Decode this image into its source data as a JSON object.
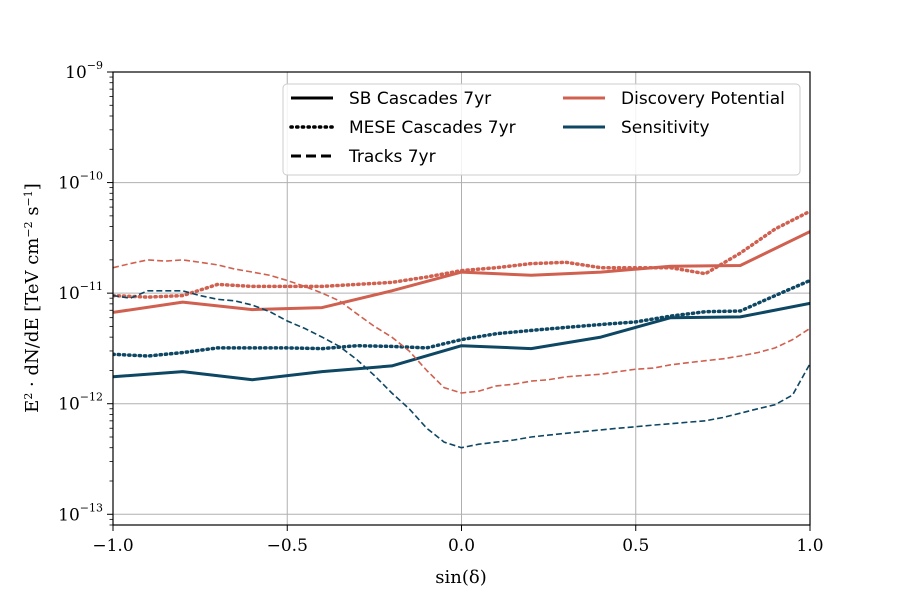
{
  "chart_data": {
    "type": "line",
    "xlabel": "sin(δ)",
    "ylabel_parts": [
      "E",
      "2",
      " · dN/dE  [TeV cm",
      "−2",
      " s",
      "−1",
      "]"
    ],
    "xlim": [
      -1.0,
      1.0
    ],
    "ylim": [
      8e-14,
      1e-09
    ],
    "yscale": "log",
    "grid": true,
    "x_ticks": [
      -1.0,
      -0.5,
      0.0,
      0.5,
      1.0
    ],
    "x_tick_labels": [
      "−1.0",
      "−0.5",
      "0.0",
      "0.5",
      "1.0"
    ],
    "y_ticks": [
      1e-13,
      1e-12,
      1e-11,
      1e-10,
      1e-09
    ],
    "y_tick_base": "10",
    "y_tick_exps": [
      "−13",
      "−12",
      "−11",
      "−10",
      "−9"
    ],
    "colors": {
      "discovery": "#d0604f",
      "sensitivity": "#0d4763"
    },
    "legend": {
      "position": "upper-right",
      "style_entries": [
        {
          "label": "SB Cascades 7yr",
          "style": "solid"
        },
        {
          "label": "MESE Cascades 7yr",
          "style": "dotted"
        },
        {
          "label": "Tracks 7yr",
          "style": "dashed"
        }
      ],
      "color_entries": [
        {
          "label": "Discovery Potential",
          "color": "#d0604f"
        },
        {
          "label": "Sensitivity",
          "color": "#0d4763"
        }
      ]
    },
    "series": [
      {
        "group": "Discovery Potential",
        "dataset": "SB Cascades 7yr",
        "style": "solid",
        "color": "#d0604f",
        "width": 3,
        "x": [
          -1.0,
          -0.8,
          -0.6,
          -0.4,
          -0.2,
          0.0,
          0.2,
          0.4,
          0.6,
          0.8,
          1.0
        ],
        "y": [
          6.7e-12,
          8.3e-12,
          7.1e-12,
          7.4e-12,
          1.05e-11,
          1.55e-11,
          1.45e-11,
          1.55e-11,
          1.75e-11,
          1.78e-11,
          3.6e-11
        ]
      },
      {
        "group": "Sensitivity",
        "dataset": "SB Cascades 7yr",
        "style": "solid",
        "color": "#0d4763",
        "width": 3,
        "x": [
          -1.0,
          -0.8,
          -0.6,
          -0.4,
          -0.2,
          0.0,
          0.2,
          0.4,
          0.6,
          0.8,
          1.0
        ],
        "y": [
          1.75e-12,
          1.95e-12,
          1.65e-12,
          1.95e-12,
          2.2e-12,
          3.35e-12,
          3.15e-12,
          4e-12,
          6e-12,
          6.1e-12,
          8.1e-12
        ]
      },
      {
        "group": "Discovery Potential",
        "dataset": "MESE Cascades 7yr",
        "style": "dotted",
        "color": "#d0604f",
        "width": 3.5,
        "x": [
          -1.0,
          -0.9,
          -0.8,
          -0.7,
          -0.6,
          -0.5,
          -0.4,
          -0.3,
          -0.2,
          -0.1,
          0.0,
          0.1,
          0.2,
          0.3,
          0.4,
          0.5,
          0.6,
          0.7,
          0.8,
          0.9,
          1.0
        ],
        "y": [
          9.5e-12,
          9.2e-12,
          9.5e-12,
          1.2e-11,
          1.15e-11,
          1.15e-11,
          1.15e-11,
          1.2e-11,
          1.25e-11,
          1.4e-11,
          1.6e-11,
          1.7e-11,
          1.85e-11,
          1.9e-11,
          1.7e-11,
          1.7e-11,
          1.7e-11,
          1.5e-11,
          2.3e-11,
          3.8e-11,
          5.5e-11
        ]
      },
      {
        "group": "Sensitivity",
        "dataset": "MESE Cascades 7yr",
        "style": "dotted",
        "color": "#0d4763",
        "width": 3.5,
        "x": [
          -1.0,
          -0.9,
          -0.8,
          -0.7,
          -0.6,
          -0.5,
          -0.4,
          -0.3,
          -0.2,
          -0.1,
          0.0,
          0.1,
          0.2,
          0.3,
          0.4,
          0.5,
          0.6,
          0.7,
          0.8,
          0.9,
          1.0
        ],
        "y": [
          2.8e-12,
          2.7e-12,
          2.9e-12,
          3.2e-12,
          3.2e-12,
          3.2e-12,
          3.15e-12,
          3.35e-12,
          3.3e-12,
          3.2e-12,
          3.8e-12,
          4.3e-12,
          4.6e-12,
          4.9e-12,
          5.2e-12,
          5.5e-12,
          6.2e-12,
          6.8e-12,
          6.9e-12,
          9.5e-12,
          1.3e-11
        ]
      },
      {
        "group": "Discovery Potential",
        "dataset": "Tracks 7yr",
        "style": "dashed",
        "color": "#d0604f",
        "width": 1.6,
        "x": [
          -1.0,
          -0.95,
          -0.9,
          -0.85,
          -0.8,
          -0.75,
          -0.7,
          -0.65,
          -0.6,
          -0.55,
          -0.5,
          -0.45,
          -0.4,
          -0.35,
          -0.3,
          -0.25,
          -0.2,
          -0.15,
          -0.1,
          -0.05,
          0.0,
          0.05,
          0.1,
          0.15,
          0.2,
          0.25,
          0.3,
          0.35,
          0.4,
          0.45,
          0.5,
          0.55,
          0.6,
          0.65,
          0.7,
          0.75,
          0.8,
          0.85,
          0.9,
          0.95,
          1.0
        ],
        "y": [
          1.7e-11,
          1.85e-11,
          2e-11,
          1.95e-11,
          2e-11,
          1.9e-11,
          1.8e-11,
          1.65e-11,
          1.55e-11,
          1.45e-11,
          1.3e-11,
          1.15e-11,
          1e-11,
          8.5e-12,
          6.5e-12,
          5e-12,
          4e-12,
          3e-12,
          2e-12,
          1.4e-12,
          1.25e-12,
          1.3e-12,
          1.45e-12,
          1.5e-12,
          1.6e-12,
          1.65e-12,
          1.75e-12,
          1.8e-12,
          1.85e-12,
          1.95e-12,
          2.05e-12,
          2.1e-12,
          2.25e-12,
          2.35e-12,
          2.45e-12,
          2.55e-12,
          2.7e-12,
          2.9e-12,
          3.2e-12,
          3.8e-12,
          4.8e-12
        ]
      },
      {
        "group": "Sensitivity",
        "dataset": "Tracks 7yr",
        "style": "dashed",
        "color": "#0d4763",
        "width": 1.6,
        "x": [
          -1.0,
          -0.95,
          -0.9,
          -0.85,
          -0.8,
          -0.75,
          -0.7,
          -0.65,
          -0.6,
          -0.55,
          -0.5,
          -0.45,
          -0.4,
          -0.35,
          -0.3,
          -0.25,
          -0.2,
          -0.15,
          -0.1,
          -0.05,
          0.0,
          0.05,
          0.1,
          0.15,
          0.2,
          0.25,
          0.3,
          0.35,
          0.4,
          0.45,
          0.5,
          0.55,
          0.6,
          0.65,
          0.7,
          0.75,
          0.8,
          0.85,
          0.9,
          0.95,
          1.0
        ],
        "y": [
          9.5e-12,
          9e-12,
          1.05e-11,
          1.05e-11,
          1.05e-11,
          9.5e-12,
          8.8e-12,
          8.5e-12,
          7.8e-12,
          6.8e-12,
          5.6e-12,
          4.8e-12,
          4e-12,
          3.3e-12,
          2.5e-12,
          1.8e-12,
          1.25e-12,
          9e-13,
          6e-13,
          4.5e-13,
          4e-13,
          4.3e-13,
          4.5e-13,
          4.7e-13,
          5e-13,
          5.2e-13,
          5.4e-13,
          5.6e-13,
          5.8e-13,
          6e-13,
          6.2e-13,
          6.4e-13,
          6.6e-13,
          6.8e-13,
          7e-13,
          7.5e-13,
          8.2e-13,
          9e-13,
          9.8e-13,
          1.2e-12,
          2.3e-12
        ]
      }
    ]
  }
}
